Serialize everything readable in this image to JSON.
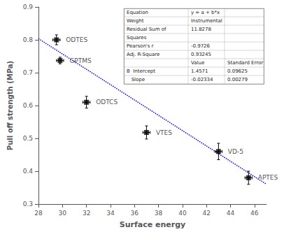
{
  "chart_data": {
    "type": "scatter",
    "xlabel": "Surface energy",
    "ylabel": "Pull off strength (MPa)",
    "xlim": [
      28,
      47
    ],
    "ylim": [
      0.3,
      0.9
    ],
    "xticks": [
      28,
      30,
      32,
      34,
      36,
      38,
      40,
      42,
      44,
      46
    ],
    "yticks": [
      0.3,
      0.4,
      0.5,
      0.6,
      0.7,
      0.8,
      0.9
    ],
    "grid": false,
    "series": [
      {
        "type": "line",
        "color": "#0000ff",
        "line_style": "dotted",
        "x": [
          28,
          47
        ],
        "values": [
          0.80358,
          0.36012
        ]
      },
      {
        "type": "scatter",
        "color": "black",
        "marker": "square",
        "x": [
          29.5,
          29.8,
          32.0,
          37.0,
          43.0,
          45.5
        ],
        "values": [
          0.8,
          0.737,
          0.61,
          0.518,
          0.46,
          0.38
        ],
        "xerr": [
          0.3,
          0.3,
          0.3,
          0.3,
          0.3,
          0.3
        ],
        "yerr": [
          0.015,
          0.01,
          0.018,
          0.02,
          0.025,
          0.02
        ],
        "labels": [
          "ODTES",
          "GPTMS",
          "ODTCS",
          "VTES",
          "VD-5",
          "APTES"
        ]
      }
    ],
    "table": [
      [
        "Equation",
        "y = a + b*x",
        null
      ],
      [
        "Weight",
        "Instrumental",
        null
      ],
      [
        "Residual Sum of",
        "11.8278",
        null
      ],
      [
        "Squares",
        null,
        null
      ],
      [
        "Pearson's r",
        "-0.9726",
        null
      ],
      [
        "Adj. R-Square",
        "0.93245",
        null
      ],
      [
        null,
        "Value",
        "Standard Error"
      ],
      [
        "B  Intercept",
        "1.4571",
        "0.09625"
      ],
      [
        "   Slope",
        "-0.02334",
        "0.00279"
      ]
    ]
  }
}
